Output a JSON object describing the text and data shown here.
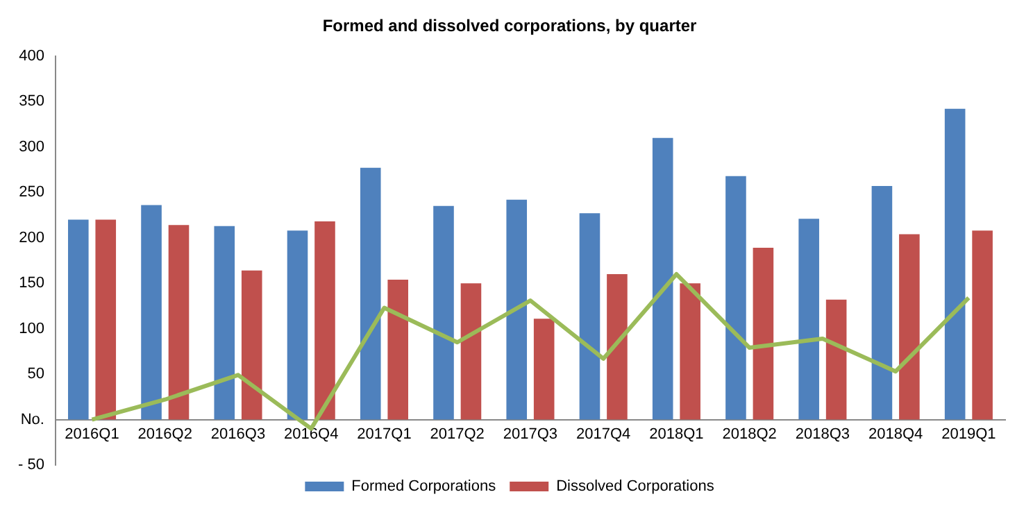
{
  "chart_data": {
    "type": "bar",
    "title": "Formed and dissolved corporations, by quarter",
    "categories": [
      "2016Q1",
      "2016Q2",
      "2016Q3",
      "2016Q4",
      "2017Q1",
      "2017Q2",
      "2017Q3",
      "2017Q4",
      "2018Q1",
      "2018Q2",
      "2018Q3",
      "2018Q4",
      "2019Q1"
    ],
    "series": [
      {
        "name": "Formed Corporations",
        "color": "#4f81bd",
        "values": [
          220,
          236,
          213,
          208,
          277,
          235,
          242,
          227,
          310,
          268,
          221,
          257,
          342
        ]
      },
      {
        "name": "Dissolved Corporations",
        "color": "#c0504d",
        "values": [
          220,
          214,
          164,
          218,
          154,
          150,
          111,
          160,
          150,
          189,
          132,
          204,
          208
        ]
      },
      {
        "type": "line",
        "color": "#9bbb59",
        "values": [
          0,
          22,
          49,
          -10,
          123,
          85,
          131,
          67,
          160,
          79,
          89,
          53,
          134
        ]
      }
    ],
    "ylim": [
      -50,
      400
    ],
    "yticks": [
      {
        "value": -50,
        "label": "- 50"
      },
      {
        "value": 0,
        "label": "No."
      },
      50,
      100,
      150,
      200,
      250,
      300,
      350,
      400
    ],
    "grid": false,
    "legend": "bottom",
    "marker": "none",
    "line_style": "solid"
  }
}
